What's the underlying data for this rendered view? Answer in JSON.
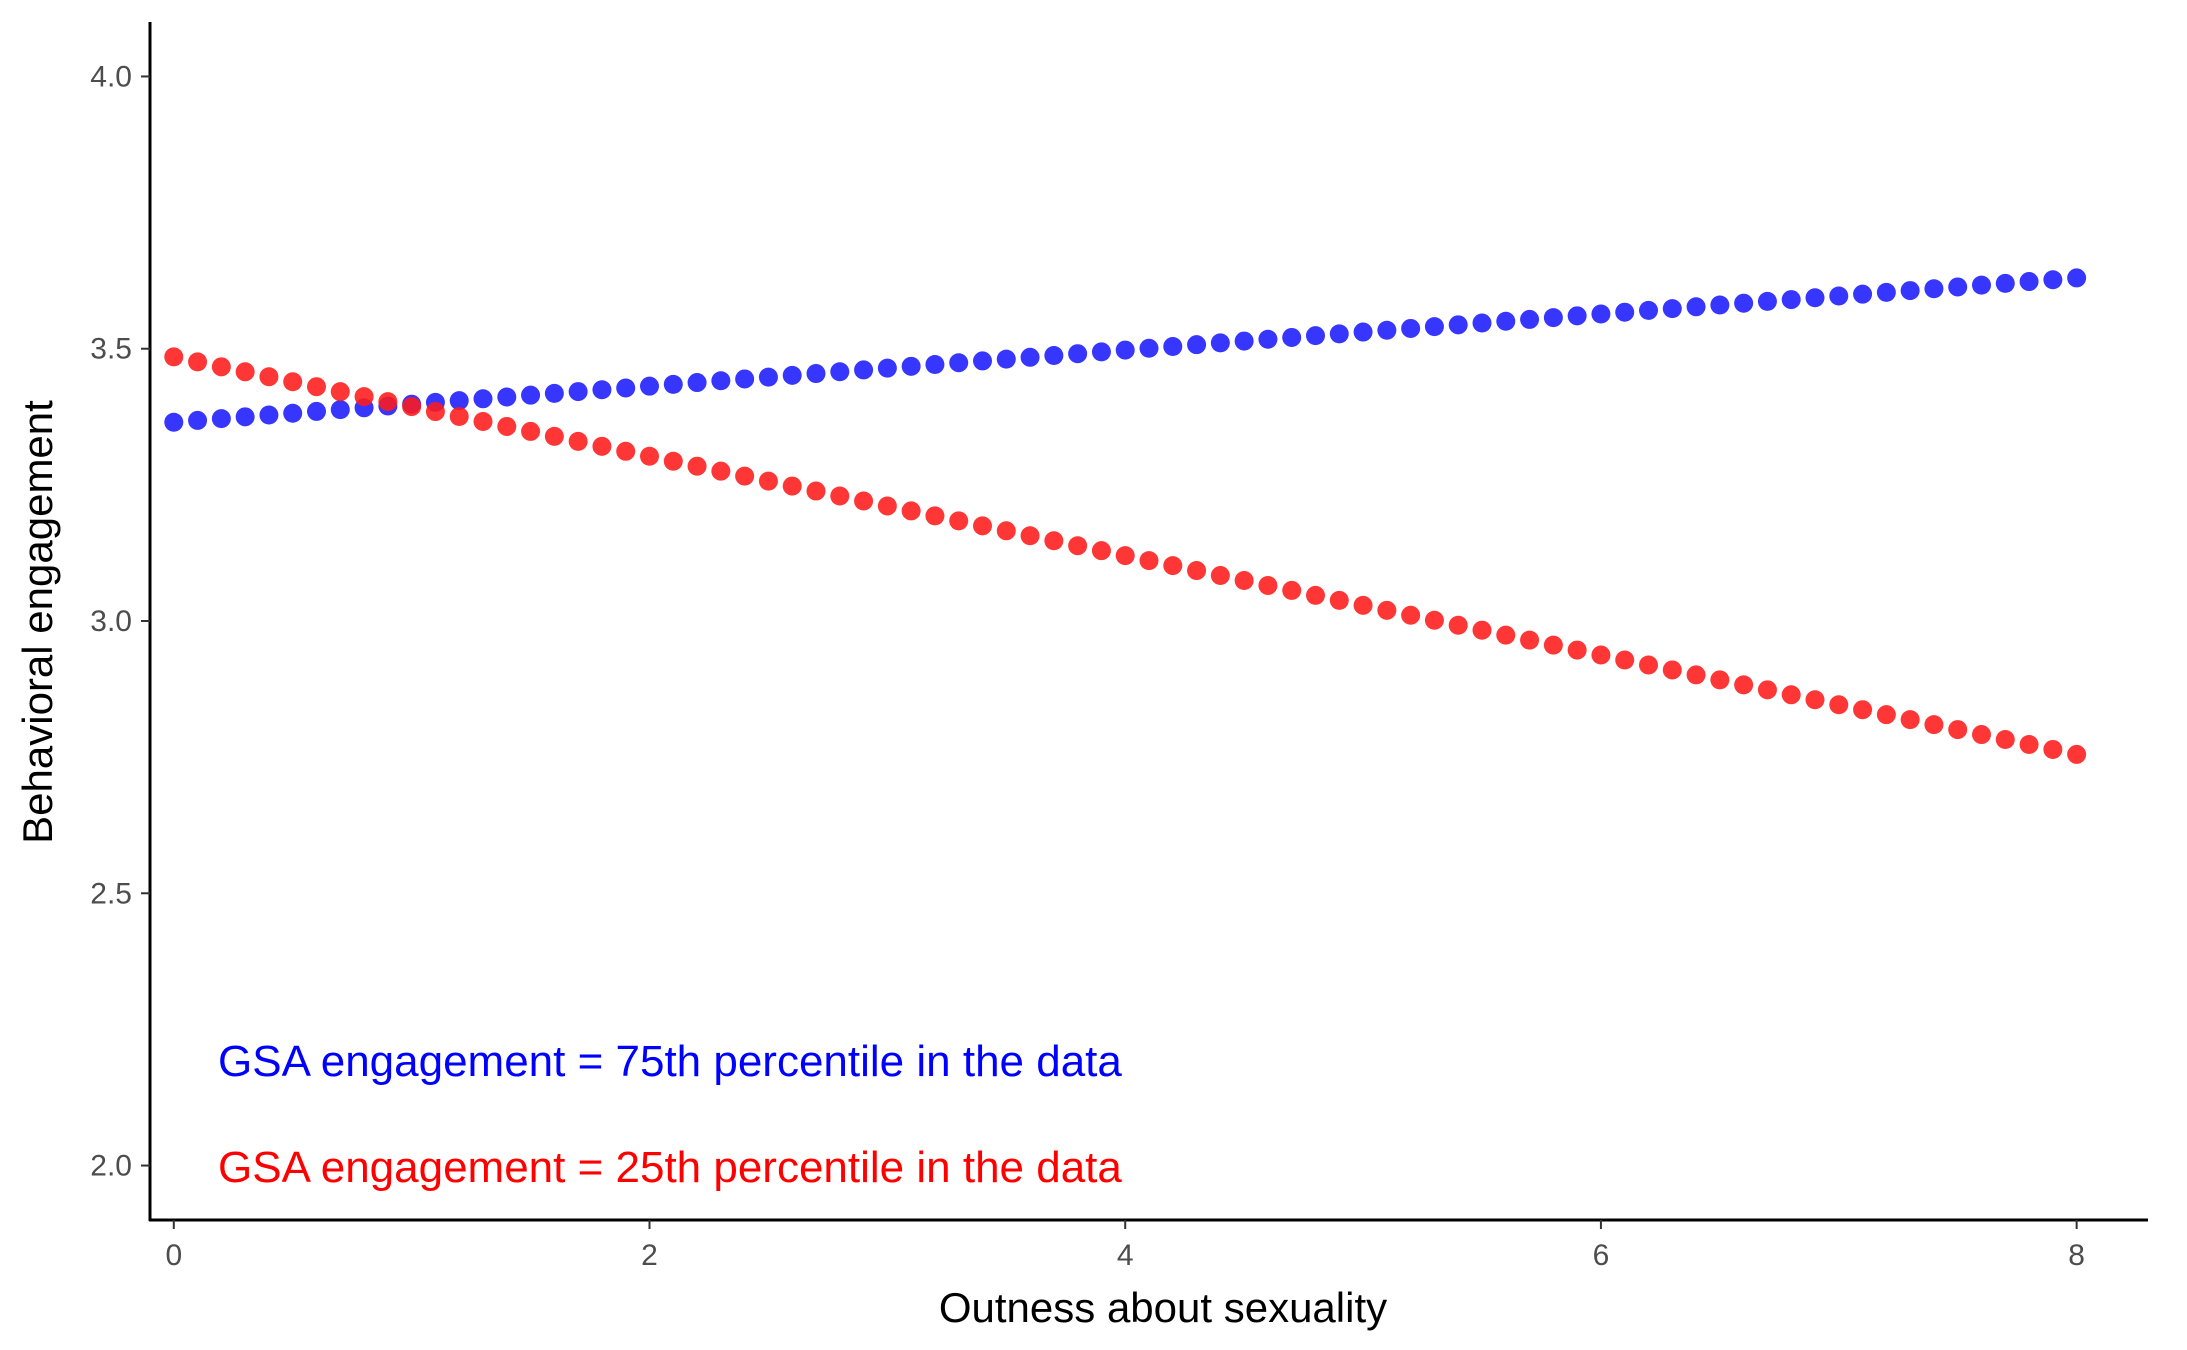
{
  "chart_data": {
    "type": "scatter",
    "title": "",
    "xlabel": "Outness about sexuality",
    "ylabel": "Behavioral engagement",
    "xlim": [
      -0.1,
      8.3
    ],
    "ylim": [
      1.9,
      4.1
    ],
    "x_ticks": [
      0,
      2,
      4,
      6,
      8
    ],
    "x_tick_labels": [
      "0",
      "2",
      "4",
      "6",
      "8"
    ],
    "y_ticks": [
      2.0,
      2.5,
      3.0,
      3.5,
      4.0
    ],
    "y_tick_labels": [
      "2.0",
      "2.5",
      "3.0",
      "3.5",
      "4.0"
    ],
    "grid": false,
    "legend": "none",
    "series": [
      {
        "color": "#1a1aff",
        "x_start": 0,
        "x_end": 8,
        "points": 81,
        "y_start": 3.365,
        "y_end": 3.63
      },
      {
        "color": "#ff1a1a",
        "x_start": 0,
        "x_end": 8,
        "points": 81,
        "y_start": 3.485,
        "y_end": 2.755
      }
    ],
    "annotations": [
      {
        "text": "GSA engagement = 75th percentile in the data",
        "color": "#0000ff",
        "x": -0.1,
        "y": 2.2
      },
      {
        "text": "GSA engagement = 25th percentile in the data",
        "color": "#ff0000",
        "x": -0.1,
        "y": 2.0
      }
    ]
  }
}
